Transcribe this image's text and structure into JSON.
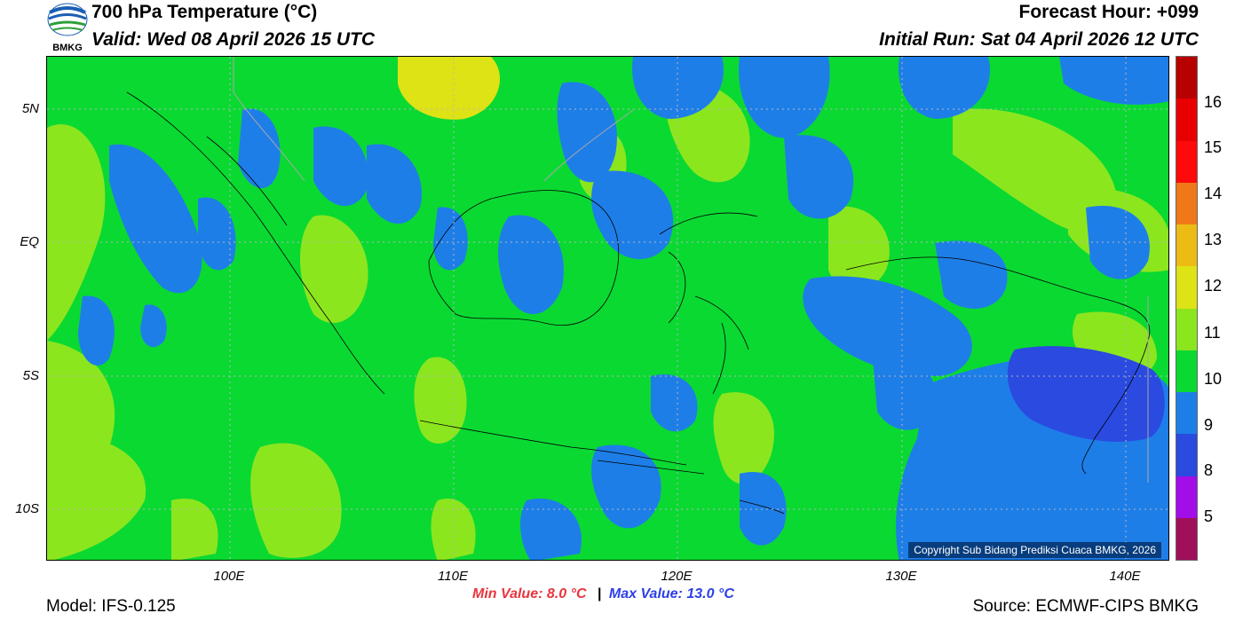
{
  "header": {
    "title": "700 hPa Temperature (°C)",
    "valid": "Valid: Wed 08 April 2026 15 UTC",
    "forecast_hour": "Forecast Hour: +099",
    "initial_run": "Initial Run: Sat 04 April 2026 12 UTC"
  },
  "logo": {
    "text": "BMKG",
    "icon": "bmkg-logo-icon"
  },
  "axes": {
    "lat_labels": [
      "5N",
      "EQ",
      "5S",
      "10S"
    ],
    "lon_labels": [
      "100E",
      "110E",
      "120E",
      "130E",
      "140E"
    ],
    "lat_range": [
      -12,
      7
    ],
    "lon_range": [
      92,
      142
    ]
  },
  "colorbar": {
    "labels": [
      "16",
      "15",
      "14",
      "13",
      "12",
      "11",
      "10",
      "9",
      "8",
      "5"
    ],
    "colors": [
      "#b80000",
      "#e80000",
      "#ff0a0a",
      "#f07818",
      "#ecbc14",
      "#dde314",
      "#8ce61e",
      "#0ad932",
      "#1e7ee8",
      "#2a4ae0",
      "#a20ee8",
      "#a0105a"
    ]
  },
  "map_colors": {
    "c9": "#1e7ee8",
    "c10": "#0ad932",
    "c11": "#8ce61e",
    "c12": "#dde314",
    "c8": "#2a4ae0"
  },
  "copyright": "Copyright Sub Bidang Prediksi Cuaca BMKG, 2026",
  "minmax": {
    "min": "Min Value: 8.0 °C",
    "sep": "|",
    "max": "Max Value: 13.0 °C"
  },
  "footer": {
    "model": "Model: IFS-0.125",
    "source": "Source: ECMWF-CIPS BMKG"
  }
}
